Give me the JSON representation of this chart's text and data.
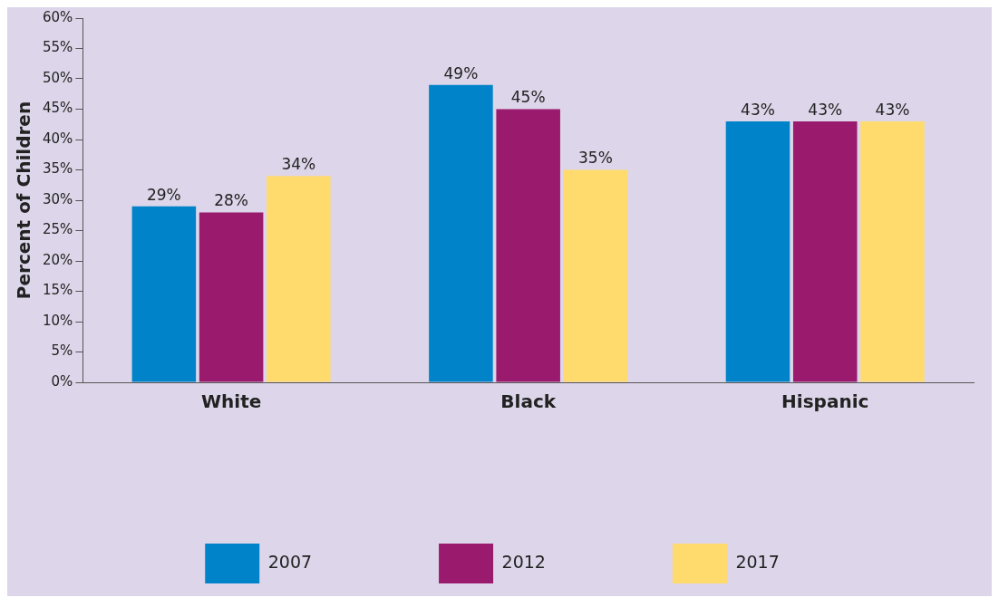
{
  "chart_data": {
    "type": "bar",
    "ylabel": "Percent of Children",
    "categories": [
      "White",
      "Black",
      "Hispanic"
    ],
    "series": [
      {
        "name": "2007",
        "color": "#0083c9",
        "values": [
          29,
          49,
          43
        ],
        "value_labels": [
          "29%",
          "49%",
          "43%"
        ]
      },
      {
        "name": "2012",
        "color": "#9a1a6e",
        "values": [
          28,
          45,
          43
        ],
        "value_labels": [
          "28%",
          "45%",
          "43%"
        ]
      },
      {
        "name": "2017",
        "color": "#ffdb6e",
        "values": [
          34,
          35,
          43
        ],
        "value_labels": [
          "34%",
          "35%",
          "43%"
        ]
      }
    ],
    "ylim": [
      0,
      60
    ],
    "yticks": [
      {
        "value": 0,
        "label": "0%"
      },
      {
        "value": 5,
        "label": "5%"
      },
      {
        "value": 10,
        "label": "10%"
      },
      {
        "value": 15,
        "label": "15%"
      },
      {
        "value": 20,
        "label": "20%"
      },
      {
        "value": 25,
        "label": "25%"
      },
      {
        "value": 30,
        "label": "30%"
      },
      {
        "value": 35,
        "label": "35%"
      },
      {
        "value": 40,
        "label": "40%"
      },
      {
        "value": 45,
        "label": "45%"
      },
      {
        "value": 50,
        "label": "50%"
      },
      {
        "value": 55,
        "label": "55%"
      },
      {
        "value": 60,
        "label": "60%"
      }
    ],
    "grid": false,
    "legend": "bottom"
  }
}
